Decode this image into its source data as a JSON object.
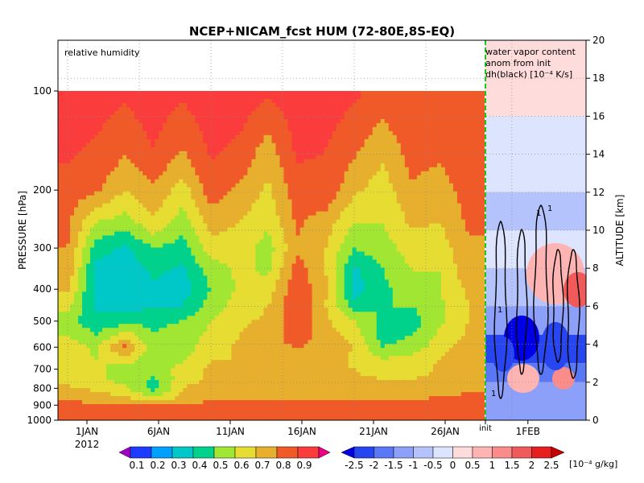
{
  "chart_data": {
    "type": "heatmap",
    "title": "NCEP+NICAM_fcst HUM (72-80E,8S-EQ)",
    "left_annotation": "relative humidity",
    "right_annotation": [
      "water vapor content",
      "anom from init",
      "dh(black) [10⁻⁴ K/s]"
    ],
    "ylabel_left": "PRESSURE [hPa]",
    "ylabel_right": "ALTITUDE [km]",
    "pressure_ticks": [
      "100",
      "200",
      "300",
      "400",
      "500",
      "600",
      "700",
      "800",
      "900",
      "1000"
    ],
    "altitude_ticks": [
      "0",
      "2",
      "4",
      "6",
      "8",
      "10",
      "12",
      "14",
      "16",
      "18",
      "20"
    ],
    "x_ticks": [
      "1JAN",
      "6JAN",
      "11JAN",
      "16JAN",
      "21JAN",
      "26JAN",
      "init",
      "1FEB"
    ],
    "year_label": "2012",
    "contour_labels": [
      "1",
      "1",
      "1",
      "1"
    ],
    "rh_colorbar": {
      "labels": [
        "0.1",
        "0.2",
        "0.3",
        "0.4",
        "0.5",
        "0.6",
        "0.7",
        "0.8",
        "0.9"
      ],
      "colors": [
        "#a000c8",
        "#1e3cff",
        "#00a0ff",
        "#00c8c8",
        "#00d28c",
        "#a0e632",
        "#e6dc32",
        "#e6af2d",
        "#f05a28",
        "#fa3c3c",
        "#f00082"
      ]
    },
    "anom_colorbar": {
      "labels": [
        "-2.5",
        "-2",
        "-1.5",
        "-1",
        "-0.5",
        "0",
        "0.5",
        "1",
        "1.5",
        "2",
        "2.5"
      ],
      "unit": "[10⁻⁴ g/kg]",
      "colors": [
        "#0000e6",
        "#2846f0",
        "#5a78f5",
        "#8ca0fa",
        "#b4c3fc",
        "#dce4fe",
        "#ffdcdc",
        "#ffb4b4",
        "#fa8c8c",
        "#f05a5a",
        "#e61e1e",
        "#c80000"
      ]
    },
    "rh_values_pressure_levels": [
      100,
      150,
      200,
      250,
      300,
      350,
      400,
      450,
      500,
      550,
      600,
      650,
      700,
      750,
      800,
      850,
      900,
      950,
      1000
    ],
    "rh_days": [
      1,
      3,
      5,
      7,
      9,
      11,
      13,
      15,
      17,
      19,
      21,
      23,
      25,
      27,
      29
    ],
    "rh_values": [
      [
        0.95,
        0.95,
        0.92,
        0.95,
        0.92,
        0.95,
        0.95,
        0.92,
        0.95,
        0.95,
        0.92,
        0.86,
        0.9,
        0.88,
        0.9
      ],
      [
        0.92,
        0.88,
        0.82,
        0.9,
        0.8,
        0.92,
        0.88,
        0.75,
        0.92,
        0.9,
        0.82,
        0.72,
        0.85,
        0.82,
        0.88
      ],
      [
        0.85,
        0.82,
        0.7,
        0.78,
        0.65,
        0.85,
        0.78,
        0.68,
        0.85,
        0.88,
        0.72,
        0.65,
        0.78,
        0.75,
        0.85
      ],
      [
        0.82,
        0.6,
        0.55,
        0.68,
        0.55,
        0.75,
        0.7,
        0.62,
        0.82,
        0.75,
        0.6,
        0.6,
        0.72,
        0.7,
        0.82
      ],
      [
        0.8,
        0.45,
        0.38,
        0.5,
        0.45,
        0.65,
        0.65,
        0.55,
        0.78,
        0.7,
        0.5,
        0.55,
        0.65,
        0.65,
        0.78
      ],
      [
        0.78,
        0.35,
        0.32,
        0.42,
        0.38,
        0.55,
        0.62,
        0.58,
        0.85,
        0.7,
        0.38,
        0.5,
        0.6,
        0.6,
        0.78
      ],
      [
        0.72,
        0.35,
        0.3,
        0.38,
        0.35,
        0.5,
        0.62,
        0.65,
        0.88,
        0.72,
        0.35,
        0.48,
        0.55,
        0.6,
        0.72
      ],
      [
        0.62,
        0.38,
        0.35,
        0.4,
        0.4,
        0.55,
        0.65,
        0.7,
        0.9,
        0.7,
        0.45,
        0.5,
        0.5,
        0.58,
        0.7
      ],
      [
        0.55,
        0.42,
        0.45,
        0.48,
        0.5,
        0.6,
        0.68,
        0.72,
        0.88,
        0.72,
        0.6,
        0.48,
        0.45,
        0.58,
        0.7
      ],
      [
        0.6,
        0.5,
        0.65,
        0.5,
        0.55,
        0.62,
        0.7,
        0.75,
        0.85,
        0.75,
        0.65,
        0.45,
        0.5,
        0.62,
        0.72
      ],
      [
        0.65,
        0.58,
        0.85,
        0.5,
        0.55,
        0.65,
        0.72,
        0.78,
        0.8,
        0.78,
        0.7,
        0.5,
        0.55,
        0.65,
        0.78
      ],
      [
        0.62,
        0.6,
        0.65,
        0.55,
        0.58,
        0.7,
        0.7,
        0.75,
        0.75,
        0.75,
        0.68,
        0.6,
        0.62,
        0.7,
        0.8
      ],
      [
        0.6,
        0.62,
        0.55,
        0.58,
        0.62,
        0.72,
        0.72,
        0.72,
        0.72,
        0.72,
        0.7,
        0.65,
        0.65,
        0.72,
        0.78
      ],
      [
        0.65,
        0.62,
        0.55,
        0.48,
        0.65,
        0.72,
        0.72,
        0.7,
        0.7,
        0.72,
        0.72,
        0.7,
        0.7,
        0.72,
        0.75
      ],
      [
        0.72,
        0.68,
        0.62,
        0.45,
        0.7,
        0.75,
        0.72,
        0.72,
        0.72,
        0.75,
        0.75,
        0.72,
        0.72,
        0.75,
        0.78
      ],
      [
        0.78,
        0.75,
        0.7,
        0.6,
        0.72,
        0.78,
        0.78,
        0.78,
        0.78,
        0.78,
        0.78,
        0.78,
        0.78,
        0.8,
        0.82
      ],
      [
        0.82,
        0.82,
        0.8,
        0.8,
        0.82,
        0.82,
        0.82,
        0.82,
        0.82,
        0.82,
        0.82,
        0.82,
        0.82,
        0.85,
        0.85
      ],
      [
        0.88,
        0.85,
        0.85,
        0.85,
        0.85,
        0.85,
        0.85,
        0.85,
        0.85,
        0.85,
        0.85,
        0.85,
        0.85,
        0.85,
        0.88
      ],
      [
        0.9,
        0.88,
        0.88,
        0.88,
        0.88,
        0.88,
        0.88,
        0.88,
        0.88,
        0.88,
        0.88,
        0.88,
        0.88,
        0.88,
        0.9
      ]
    ]
  }
}
